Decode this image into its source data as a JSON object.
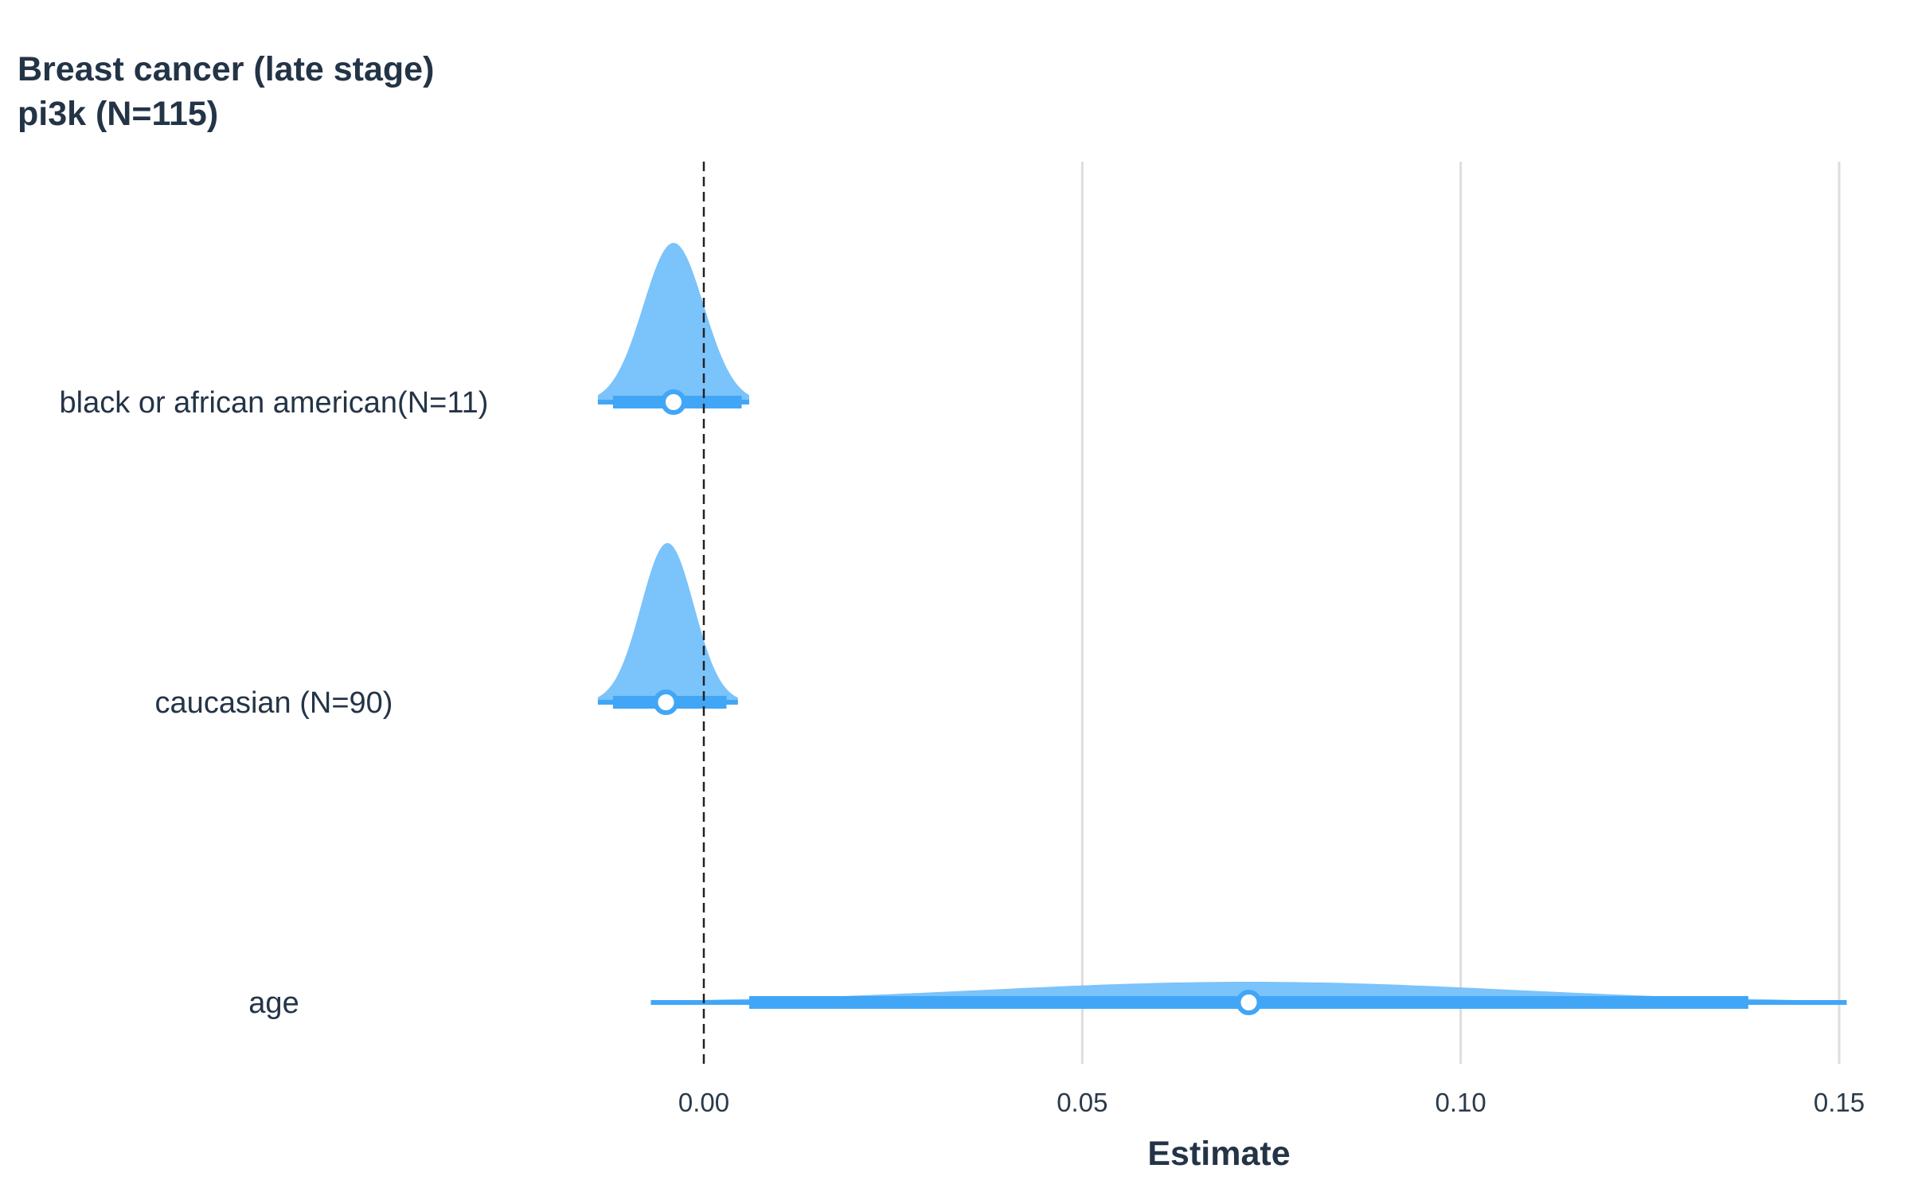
{
  "chart_data": {
    "type": "forest-density",
    "title_lines": [
      "Breast cancer (late stage)",
      "pi3k (N=115)"
    ],
    "xlabel": "Estimate",
    "ylabel": "",
    "xlim": [
      -0.093,
      0.153
    ],
    "x_ticks": [
      0.0,
      0.05,
      0.1,
      0.15
    ],
    "x_tick_labels": [
      "0.00",
      "0.05",
      "0.10",
      "0.15"
    ],
    "reference_line": 0,
    "grid": "vertical",
    "colors": {
      "density": "#7bc3fb",
      "interval": "#42a6f7",
      "point_fill": "#ffffff",
      "reference": "#222222"
    },
    "series": [
      {
        "label": "black or african american(N=11)",
        "estimate": -0.004,
        "ci_inner": [
          -0.012,
          0.005
        ],
        "ci_outer": [
          -0.014,
          0.006
        ],
        "density_mode": -0.004,
        "density_sd": 0.004,
        "density_range": [
          -0.014,
          0.006
        ],
        "relative_height": 1.0
      },
      {
        "label": "caucasian (N=90)",
        "estimate": -0.005,
        "ci_inner": [
          -0.012,
          0.003
        ],
        "ci_outer": [
          -0.014,
          0.0045
        ],
        "density_mode": -0.0048,
        "density_sd": 0.0035,
        "density_range": [
          -0.014,
          0.0045
        ],
        "relative_height": 1.0
      },
      {
        "label": "age",
        "estimate": 0.072,
        "ci_inner": [
          0.006,
          0.138
        ],
        "ci_outer": [
          -0.007,
          0.151
        ],
        "density_mode": 0.072,
        "density_sd": 0.035,
        "density_range": [
          -0.007,
          0.151
        ],
        "relative_height": 0.13
      }
    ]
  }
}
